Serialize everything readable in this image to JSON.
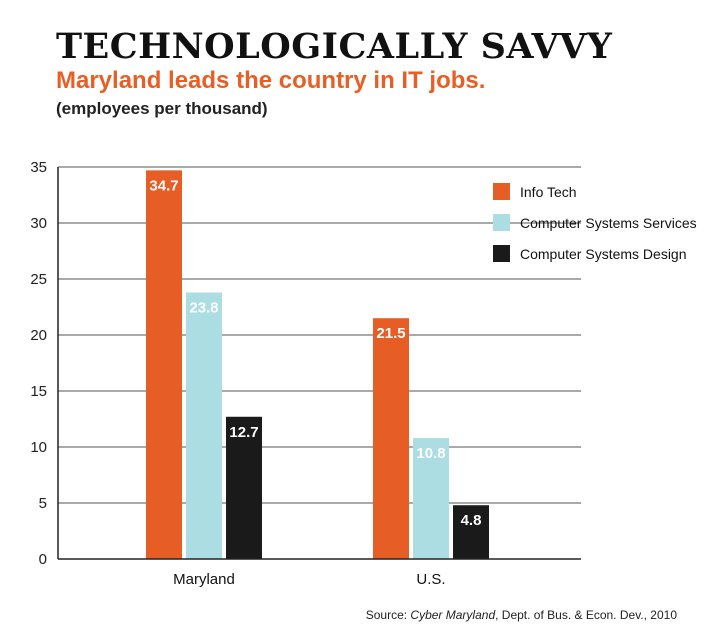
{
  "header": {
    "title": "TECHNOLOGICALLY SAVVY",
    "subtitle": "Maryland leads the country in IT jobs.",
    "unit_note": "(employees per thousand)"
  },
  "source": {
    "prefix": "Source: ",
    "publication": "Cyber Maryland",
    "rest": ",  Dept. of Bus. & Econ. Dev., 2010"
  },
  "chart_data": {
    "type": "bar",
    "categories": [
      "Maryland",
      "U.S."
    ],
    "series": [
      {
        "name": "Info Tech",
        "color": "#e65d25",
        "values": [
          34.7,
          21.5
        ],
        "labels": [
          "34.7",
          "21.5"
        ]
      },
      {
        "name": "Computer Systems Services",
        "color": "#abdde3",
        "values": [
          23.8,
          10.8
        ],
        "labels": [
          "23.8",
          "10.8"
        ]
      },
      {
        "name": "Computer Systems Design",
        "color": "#1a1a1a",
        "values": [
          12.7,
          4.8
        ],
        "labels": [
          "12.7",
          "4.8"
        ]
      }
    ],
    "ylim": [
      0,
      35
    ],
    "yticks": [
      0,
      5,
      10,
      15,
      20,
      25,
      30,
      35
    ],
    "ytick_labels": [
      "0",
      "5",
      "10",
      "15",
      "20",
      "25",
      "30",
      "35"
    ],
    "grid": true,
    "legend_position": "top-right",
    "xlabel": "",
    "ylabel": ""
  }
}
